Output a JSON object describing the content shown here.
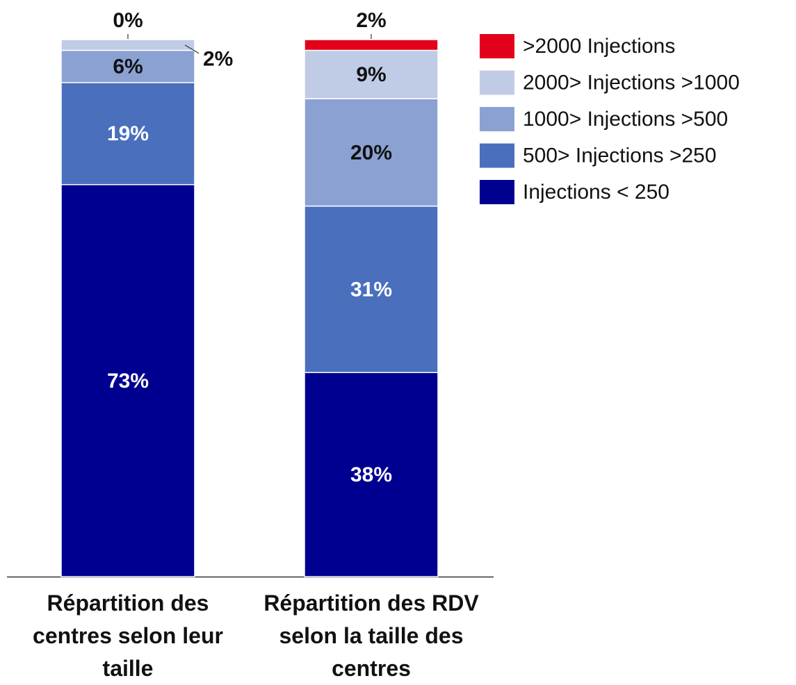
{
  "chart_data": {
    "type": "stacked_bar",
    "categories": [
      "Répartition des centres selon leur taille",
      "Répartition des RDV selon la taille des centres"
    ],
    "series": [
      {
        "name": "Injections < 250",
        "color": "#000090",
        "values": [
          73,
          38
        ],
        "value_labels": [
          "73%",
          "38%"
        ]
      },
      {
        "name": "500> Injections >250",
        "color": "#4a6fbd",
        "values": [
          19,
          31
        ],
        "value_labels": [
          "19%",
          "31%"
        ]
      },
      {
        "name": "1000> Injections >500",
        "color": "#8aa1d2",
        "values": [
          6,
          20
        ],
        "value_labels": [
          "6%",
          "20%"
        ]
      },
      {
        "name": "2000> Injections >1000",
        "color": "#c0cbe6",
        "values": [
          2,
          9
        ],
        "value_labels": [
          "2%",
          "9%"
        ]
      },
      {
        "name": ">2000 Injections",
        "color": "#e3001b",
        "values": [
          0,
          2
        ],
        "value_labels": [
          "0%",
          "2%"
        ]
      }
    ],
    "ylim": [
      0,
      100
    ]
  }
}
